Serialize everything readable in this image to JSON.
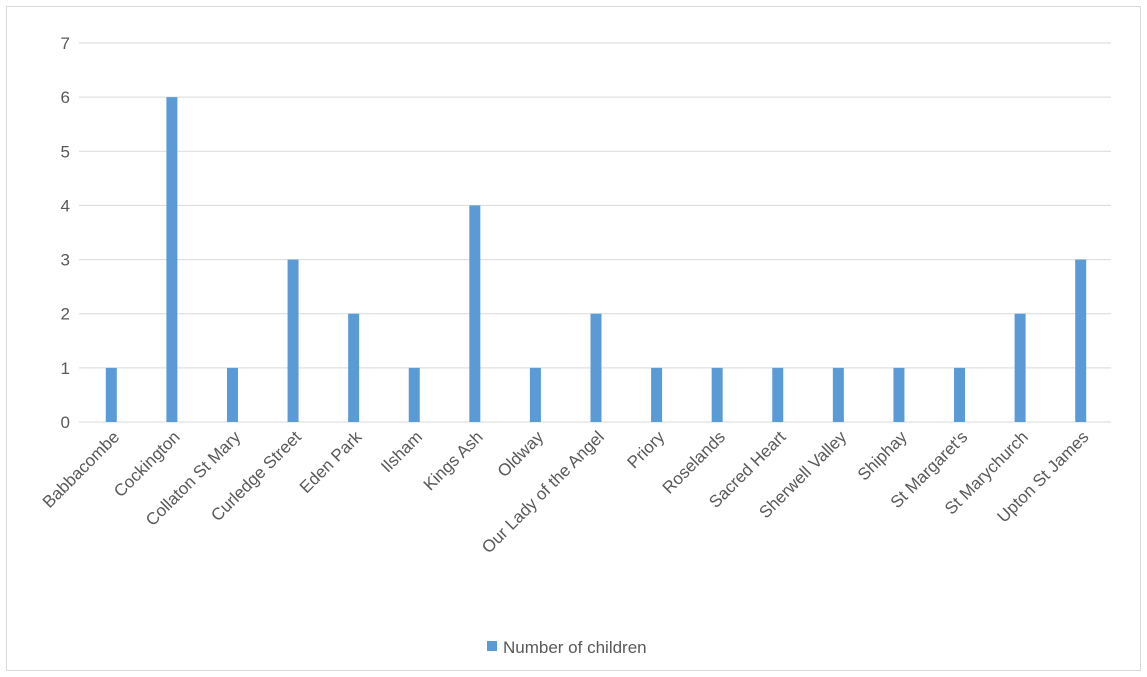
{
  "chart_data": {
    "type": "bar",
    "title": "",
    "xlabel": "",
    "ylabel": "",
    "categories": [
      "Babbacombe",
      "Cockington",
      "Collaton St Mary",
      "Curledge Street",
      "Eden Park",
      "Ilsham",
      "Kings Ash",
      "Oldway",
      "Our Lady of the Angel",
      "Priory",
      "Roselands",
      "Sacred Heart",
      "Sherwell Valley",
      "Shiphay",
      "St Margaret's",
      "St Marychurch",
      "Upton St James"
    ],
    "series": [
      {
        "name": "Number of children",
        "values": [
          1,
          6,
          1,
          3,
          2,
          1,
          4,
          1,
          2,
          1,
          1,
          1,
          1,
          1,
          1,
          2,
          3
        ]
      }
    ],
    "ylim": [
      0,
      7
    ],
    "yticks": [
      0,
      1,
      2,
      3,
      4,
      5,
      6,
      7
    ],
    "grid": true,
    "legend_position": "bottom",
    "colors": {
      "bar": "#5b9bd5",
      "grid": "#d9d9d9",
      "text": "#595959"
    }
  }
}
